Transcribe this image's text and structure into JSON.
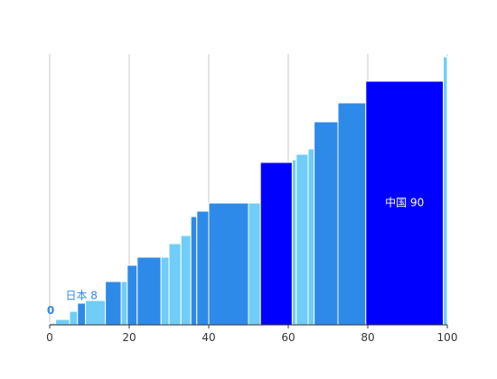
{
  "chart_data": {
    "type": "bar",
    "variant": "variable-width cumulative (Marimekko-style step chart)",
    "x_axis": {
      "range": [
        0,
        100
      ],
      "ticks": [
        0,
        20,
        40,
        60,
        80,
        100
      ],
      "grid": true
    },
    "y_axis": {
      "visible": false
    },
    "colors": {
      "light": "#6fcdf8",
      "mid": "#2e8ae8",
      "highlight": "#0000ff"
    },
    "bars": [
      {
        "x0": 0.0,
        "x1": 1.5,
        "value": 0.6,
        "shade": "light"
      },
      {
        "x0": 1.5,
        "x1": 5.0,
        "value": 2.0,
        "shade": "light"
      },
      {
        "x0": 5.0,
        "x1": 7.0,
        "value": 5.0,
        "shade": "light"
      },
      {
        "x0": 7.0,
        "x1": 9.0,
        "value": 8.0,
        "shade": "mid",
        "label": "日本 8"
      },
      {
        "x0": 9.0,
        "x1": 14.0,
        "value": 9.0,
        "shade": "light"
      },
      {
        "x0": 14.0,
        "x1": 18.0,
        "value": 16.0,
        "shade": "mid"
      },
      {
        "x0": 18.0,
        "x1": 19.5,
        "value": 16.0,
        "shade": "light"
      },
      {
        "x0": 19.5,
        "x1": 22.0,
        "value": 22.0,
        "shade": "mid"
      },
      {
        "x0": 22.0,
        "x1": 28.0,
        "value": 25.0,
        "shade": "mid"
      },
      {
        "x0": 28.0,
        "x1": 30.0,
        "value": 25.0,
        "shade": "light"
      },
      {
        "x0": 30.0,
        "x1": 33.0,
        "value": 30.0,
        "shade": "light"
      },
      {
        "x0": 33.0,
        "x1": 35.5,
        "value": 33.0,
        "shade": "light"
      },
      {
        "x0": 35.5,
        "x1": 37.0,
        "value": 40.0,
        "shade": "mid"
      },
      {
        "x0": 37.0,
        "x1": 40.0,
        "value": 42.0,
        "shade": "mid"
      },
      {
        "x0": 40.0,
        "x1": 50.0,
        "value": 45.0,
        "shade": "mid"
      },
      {
        "x0": 50.0,
        "x1": 53.0,
        "value": 45.0,
        "shade": "light"
      },
      {
        "x0": 53.0,
        "x1": 61.0,
        "value": 60.0,
        "shade": "highlight"
      },
      {
        "x0": 61.0,
        "x1": 62.0,
        "value": 61.0,
        "shade": "light"
      },
      {
        "x0": 62.0,
        "x1": 65.0,
        "value": 63.0,
        "shade": "light"
      },
      {
        "x0": 65.0,
        "x1": 66.5,
        "value": 65.0,
        "shade": "light"
      },
      {
        "x0": 66.5,
        "x1": 72.5,
        "value": 75.0,
        "shade": "mid"
      },
      {
        "x0": 72.5,
        "x1": 79.5,
        "value": 82.0,
        "shade": "mid"
      },
      {
        "x0": 79.5,
        "x1": 99.0,
        "value": 90.0,
        "shade": "highlight",
        "label": "中国 90"
      },
      {
        "x0": 99.0,
        "x1": 100.0,
        "value": 99.0,
        "shade": "light"
      }
    ],
    "zero_label": "0"
  }
}
